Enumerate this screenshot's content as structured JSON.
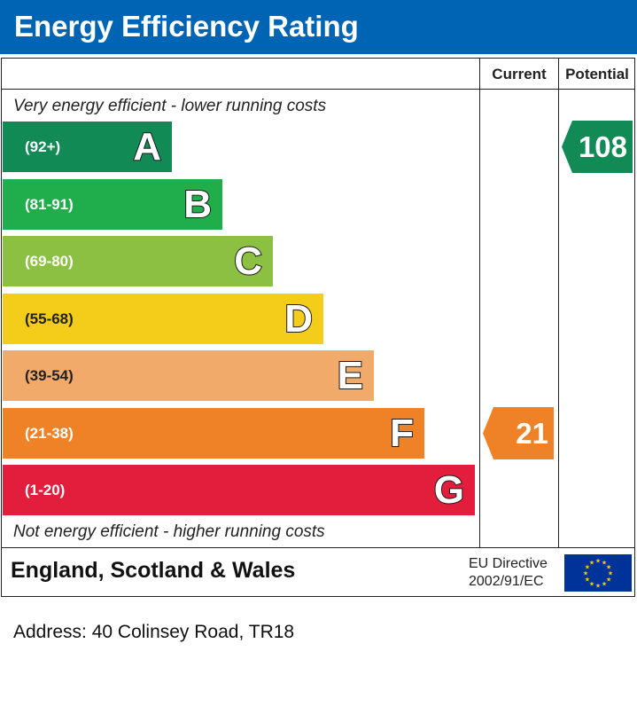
{
  "title": "Energy Efficiency Rating",
  "columns": {
    "current": "Current",
    "potential": "Potential"
  },
  "notes": {
    "top": "Very energy efficient - lower running costs",
    "bottom": "Not energy efficient - higher running costs"
  },
  "chart_data": {
    "type": "bar",
    "categories": [
      "A",
      "B",
      "C",
      "D",
      "E",
      "F",
      "G"
    ],
    "ranges": [
      "(92+)",
      "(81-91)",
      "(69-80)",
      "(55-68)",
      "(39-54)",
      "(21-38)",
      "(1-20)"
    ],
    "colors": [
      "#118a55",
      "#1fae4b",
      "#8cc042",
      "#f4cd1a",
      "#f2aa6b",
      "#ef8126",
      "#e31d3c"
    ],
    "current": {
      "value": "21",
      "band": "F",
      "color": "#ef8126"
    },
    "potential": {
      "value": "108",
      "band": "A",
      "color": "#118a55"
    }
  },
  "footer": {
    "country": "England, Scotland & Wales",
    "directive_line1": "EU Directive",
    "directive_line2": "2002/91/EC"
  },
  "address": "Address: 40 Colinsey Road, TR18"
}
